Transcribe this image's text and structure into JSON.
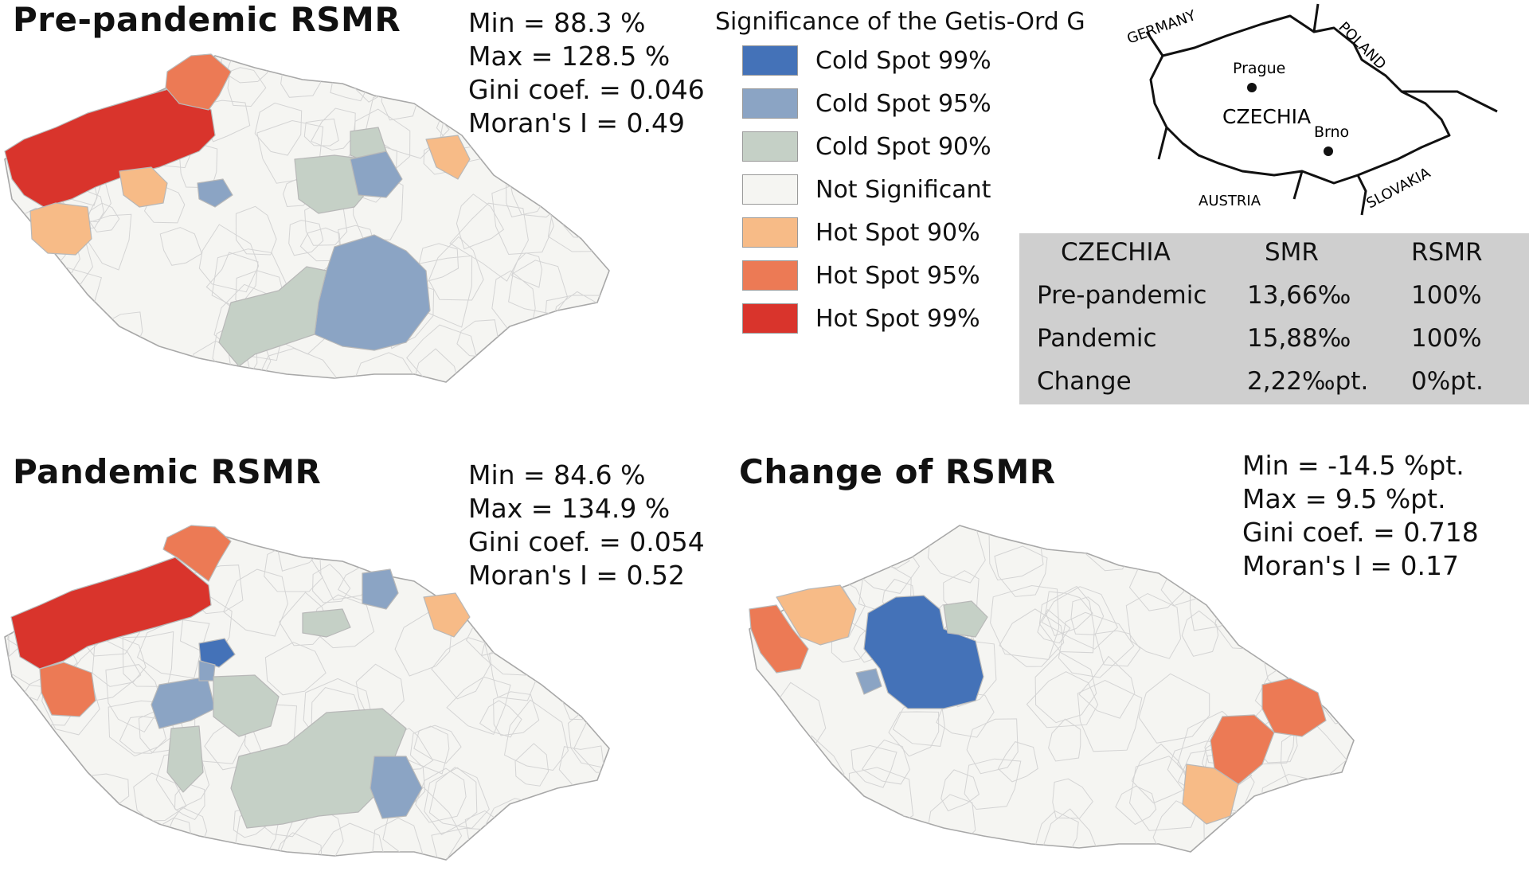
{
  "colors": {
    "cold99": "#4472b8",
    "cold95": "#8ba4c4",
    "cold90": "#c5d0c6",
    "ns": "#f5f5f2",
    "hot90": "#f7bb87",
    "hot95": "#ec7a55",
    "hot99": "#d9342c",
    "border": "#c8c8c8"
  },
  "panels": [
    {
      "title": "Pre-pandemic RSMR",
      "stats": [
        "Min = 88.3 %",
        "Max = 128.5 %",
        "Gini coef. = 0.046",
        "Moran's I = 0.49"
      ]
    },
    {
      "title": "Pandemic RSMR",
      "stats": [
        "Min = 84.6 %",
        "Max = 134.9 %",
        "Gini coef. = 0.054",
        "Moran's I = 0.52"
      ]
    },
    {
      "title": "Change of RSMR",
      "stats": [
        "Min = -14.5 %pt.",
        "Max = 9.5 %pt.",
        "Gini coef. = 0.718",
        "Moran's I = 0.17"
      ]
    }
  ],
  "legend": {
    "title": "Significance of the Getis-Ord G",
    "items": [
      {
        "label": "Cold Spot 99%",
        "color": "#4472b8"
      },
      {
        "label": "Cold Spot 95%",
        "color": "#8ba4c4"
      },
      {
        "label": "Cold Spot 90%",
        "color": "#c5d0c6"
      },
      {
        "label": "Not Significant",
        "color": "#f5f5f2"
      },
      {
        "label": "Hot Spot 90%",
        "color": "#f7bb87"
      },
      {
        "label": "Hot Spot 95%",
        "color": "#ec7a55"
      },
      {
        "label": "Hot Spot 99%",
        "color": "#d9342c"
      }
    ]
  },
  "inset": {
    "neighbors": [
      "GERMANY",
      "POLAND",
      "AUSTRIA",
      "SLOVAKIA"
    ],
    "country": "CZECHIA",
    "cities": [
      "Prague",
      "Brno"
    ]
  },
  "table": {
    "header": [
      "CZECHIA",
      "SMR",
      "RSMR"
    ],
    "rows": [
      [
        "Pre-pandemic",
        "13,66‰",
        "100%"
      ],
      [
        "Pandemic",
        "15,88‰",
        "100%"
      ],
      [
        "Change",
        "2,22‰pt.",
        "0%pt."
      ]
    ]
  }
}
